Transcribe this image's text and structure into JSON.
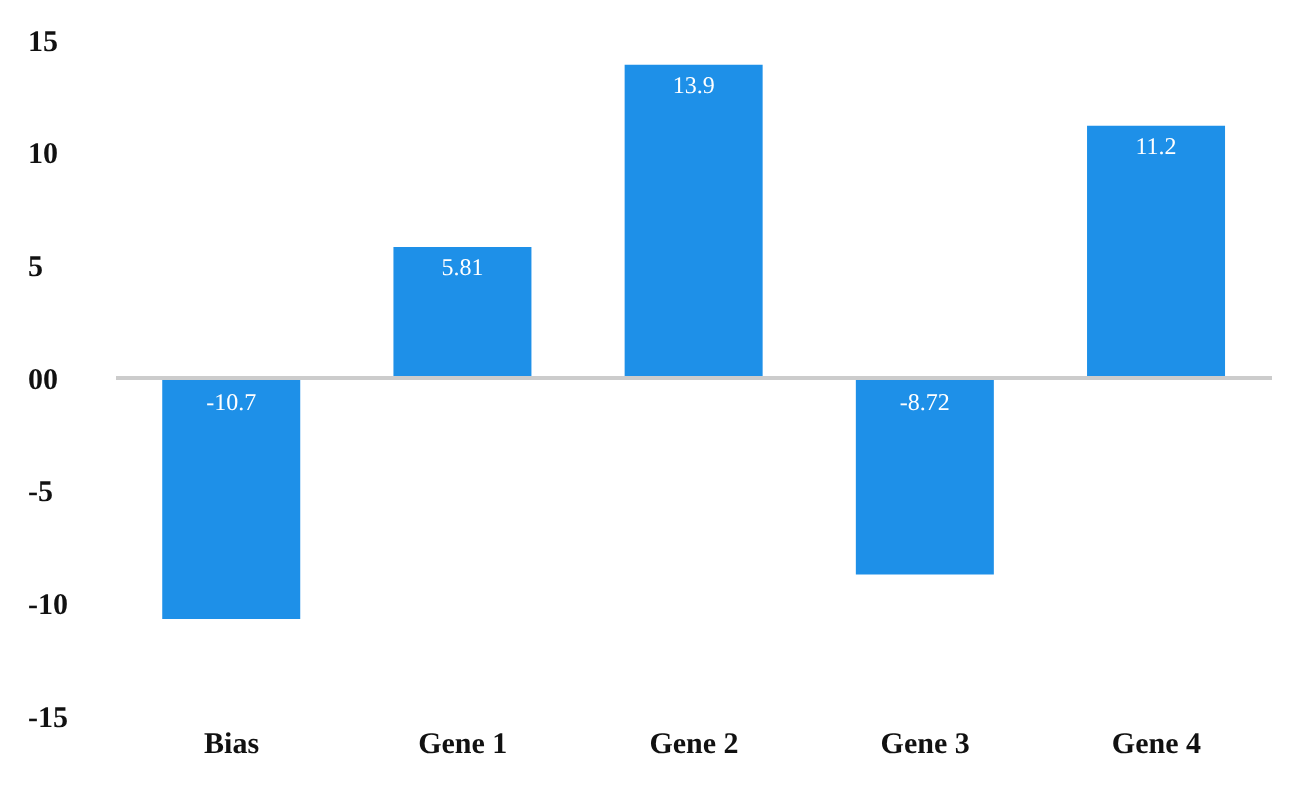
{
  "chart_data": {
    "type": "bar",
    "categories": [
      "Bias",
      "Gene 1",
      "Gene 2",
      "Gene 3",
      "Gene 4"
    ],
    "values": [
      -10.7,
      5.81,
      13.9,
      -8.72,
      11.2
    ],
    "color": "#1e90e8",
    "data_labels": true,
    "grid": false,
    "legend": false,
    "ref_lines": [
      {
        "axis": "y",
        "value": 0,
        "color": "#cccccc"
      }
    ],
    "ylim": [
      -15,
      15
    ],
    "yticks": [
      {
        "value": -15,
        "label": "-15"
      },
      {
        "value": -10,
        "label": "-10"
      },
      {
        "value": -5,
        "label": "-5"
      },
      {
        "value": 0,
        "label": "00"
      },
      {
        "value": 5,
        "label": "5"
      },
      {
        "value": 10,
        "label": "10"
      },
      {
        "value": 15,
        "label": "15"
      }
    ]
  }
}
